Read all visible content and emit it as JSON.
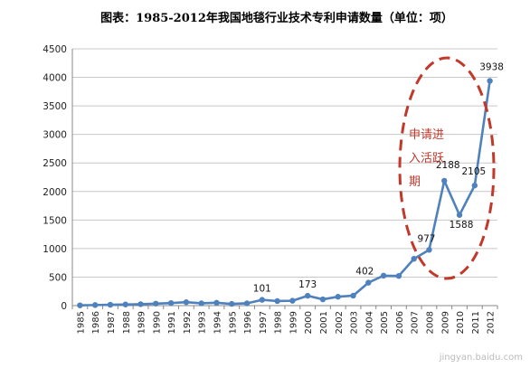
{
  "chart_data": {
    "type": "line",
    "title": "图表：1985-2012年我国地毯行业技术专利申请数量（单位：项）",
    "xlabel": "",
    "ylabel": "",
    "x": [
      "1985",
      "1986",
      "1987",
      "1988",
      "1989",
      "1990",
      "1991",
      "1992",
      "1993",
      "1994",
      "1995",
      "1996",
      "1997",
      "1998",
      "1999",
      "2000",
      "2001",
      "2002",
      "2003",
      "2004",
      "2005",
      "2006",
      "2007",
      "2008",
      "2009",
      "2010",
      "2011",
      "2012"
    ],
    "series": [
      {
        "values": [
          5,
          10,
          15,
          20,
          25,
          35,
          45,
          60,
          40,
          50,
          30,
          40,
          101,
          80,
          85,
          173,
          110,
          155,
          175,
          402,
          525,
          520,
          820,
          977,
          2188,
          1588,
          2105,
          3938
        ],
        "color": "#4f81bd"
      }
    ],
    "data_labels": [
      {
        "index": 12,
        "text": "101"
      },
      {
        "index": 15,
        "text": "173"
      },
      {
        "index": 19,
        "text": "402"
      },
      {
        "index": 23,
        "text": "977"
      },
      {
        "index": 24,
        "text": "2188"
      },
      {
        "index": 25,
        "text": "1588"
      },
      {
        "index": 26,
        "text": "2105"
      },
      {
        "index": 27,
        "text": "3938"
      }
    ],
    "yticks": [
      "0",
      "500",
      "1000",
      "1500",
      "2000",
      "2500",
      "3000",
      "3500",
      "4000",
      "4500"
    ],
    "ylim": [
      0,
      4500
    ],
    "grid": true,
    "legend": "none",
    "annotation": {
      "lines": [
        "申请进",
        "入活跃",
        "期"
      ],
      "color": "#c0392b",
      "shape": "dashed-ellipse"
    },
    "watermark": "jingyan.baidu.com"
  }
}
